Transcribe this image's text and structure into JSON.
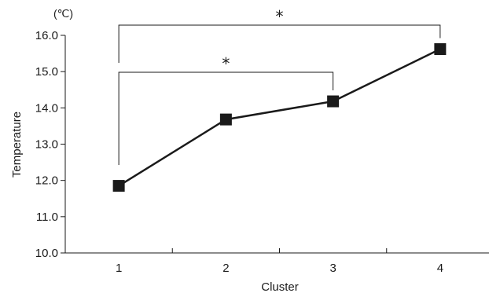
{
  "chart_data": {
    "type": "line",
    "xlabel": "Cluster",
    "ylabel": "Temperature",
    "y_unit": "(℃)",
    "x": [
      1,
      2,
      3,
      4
    ],
    "x_tick_labels": [
      "1",
      "2",
      "3",
      "4"
    ],
    "xlim": [
      0.5,
      4.5
    ],
    "ylim": [
      10.0,
      16.0
    ],
    "y_ticks": [
      10.0,
      11.0,
      12.0,
      13.0,
      14.0,
      15.0,
      16.0
    ],
    "y_tick_labels": [
      "10.0",
      "11.0",
      "12.0",
      "13.0",
      "14.0",
      "15.0",
      "16.0"
    ],
    "series": [
      {
        "values": [
          11.85,
          13.68,
          14.18,
          15.62
        ]
      }
    ],
    "grid": false,
    "legend": "none",
    "marker": "square",
    "line_color": "#1a1a1a",
    "significance": [
      {
        "from_x": 1,
        "to_x": 3,
        "label": "*"
      },
      {
        "from_x": 1,
        "to_x": 4,
        "label": "*"
      }
    ]
  }
}
